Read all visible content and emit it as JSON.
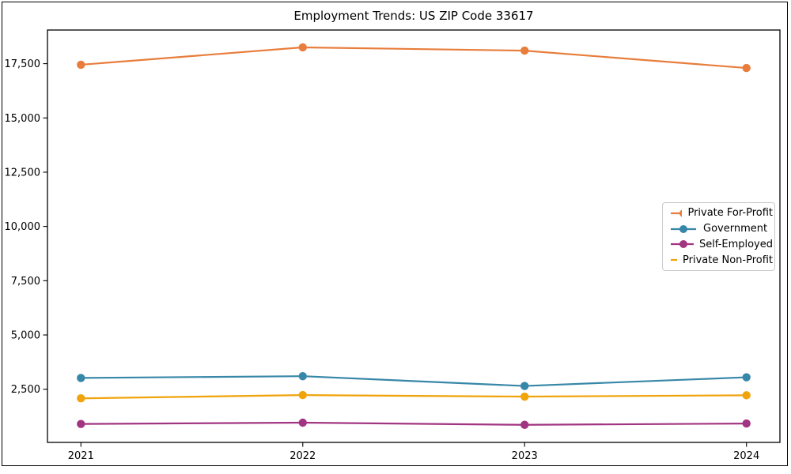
{
  "figure": {
    "title": "Employment Trends: US ZIP Code 33617"
  },
  "chart_data": {
    "type": "line",
    "title": "Employment Trends: US ZIP Code 33617",
    "xlabel": "",
    "ylabel": "",
    "categories": [
      "2021",
      "2022",
      "2023",
      "2024"
    ],
    "series": [
      {
        "name": "Private For-Profit",
        "color": "#e87d3c",
        "values": [
          17450,
          18250,
          18100,
          17300
        ]
      },
      {
        "name": "Government",
        "color": "#3787a8",
        "values": [
          3020,
          3100,
          2650,
          3050
        ]
      },
      {
        "name": "Self-Employed",
        "color": "#a23582",
        "values": [
          900,
          960,
          860,
          920
        ]
      },
      {
        "name": "Private Non-Profit",
        "color": "#f0a30a",
        "values": [
          2080,
          2230,
          2160,
          2220
        ]
      }
    ],
    "ylim": [
      50,
      19050
    ],
    "yticks": [
      2500,
      5000,
      7500,
      10000,
      12500,
      15000,
      17500
    ],
    "ytick_labels": [
      "2,500",
      "5,000",
      "7,500",
      "10,000",
      "12,500",
      "15,000",
      "17,500"
    ],
    "grid": false,
    "legend_position": "center-right",
    "marker": "circle"
  }
}
